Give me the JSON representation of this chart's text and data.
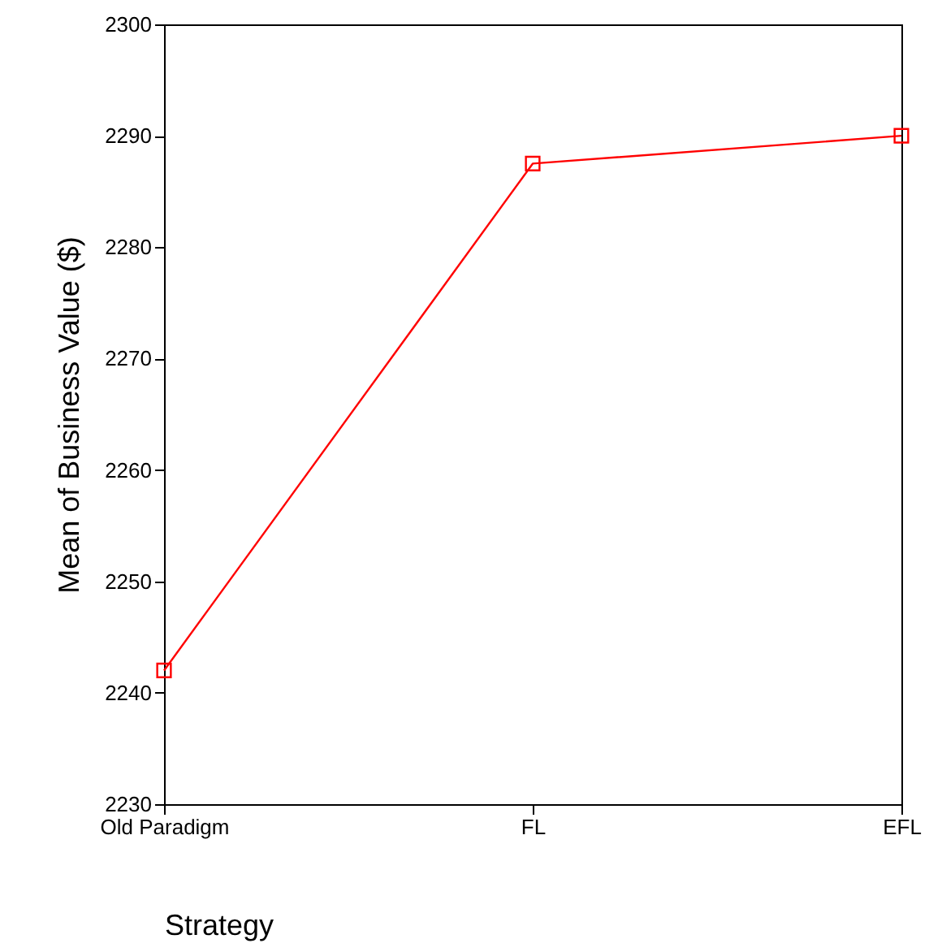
{
  "chart_data": {
    "type": "line",
    "xlabel": "Strategy",
    "ylabel": "Mean of Business Value ($)",
    "categories": [
      "Old Paradigm",
      "FL",
      "EFL"
    ],
    "series": [
      {
        "color": "#ff0000",
        "values": [
          2242,
          2287.5,
          2290
        ]
      }
    ],
    "ylim": [
      2230,
      2300
    ],
    "yticks": [
      2230,
      2240,
      2250,
      2260,
      2270,
      2280,
      2290,
      2300
    ],
    "marker": "square",
    "grid": false
  }
}
